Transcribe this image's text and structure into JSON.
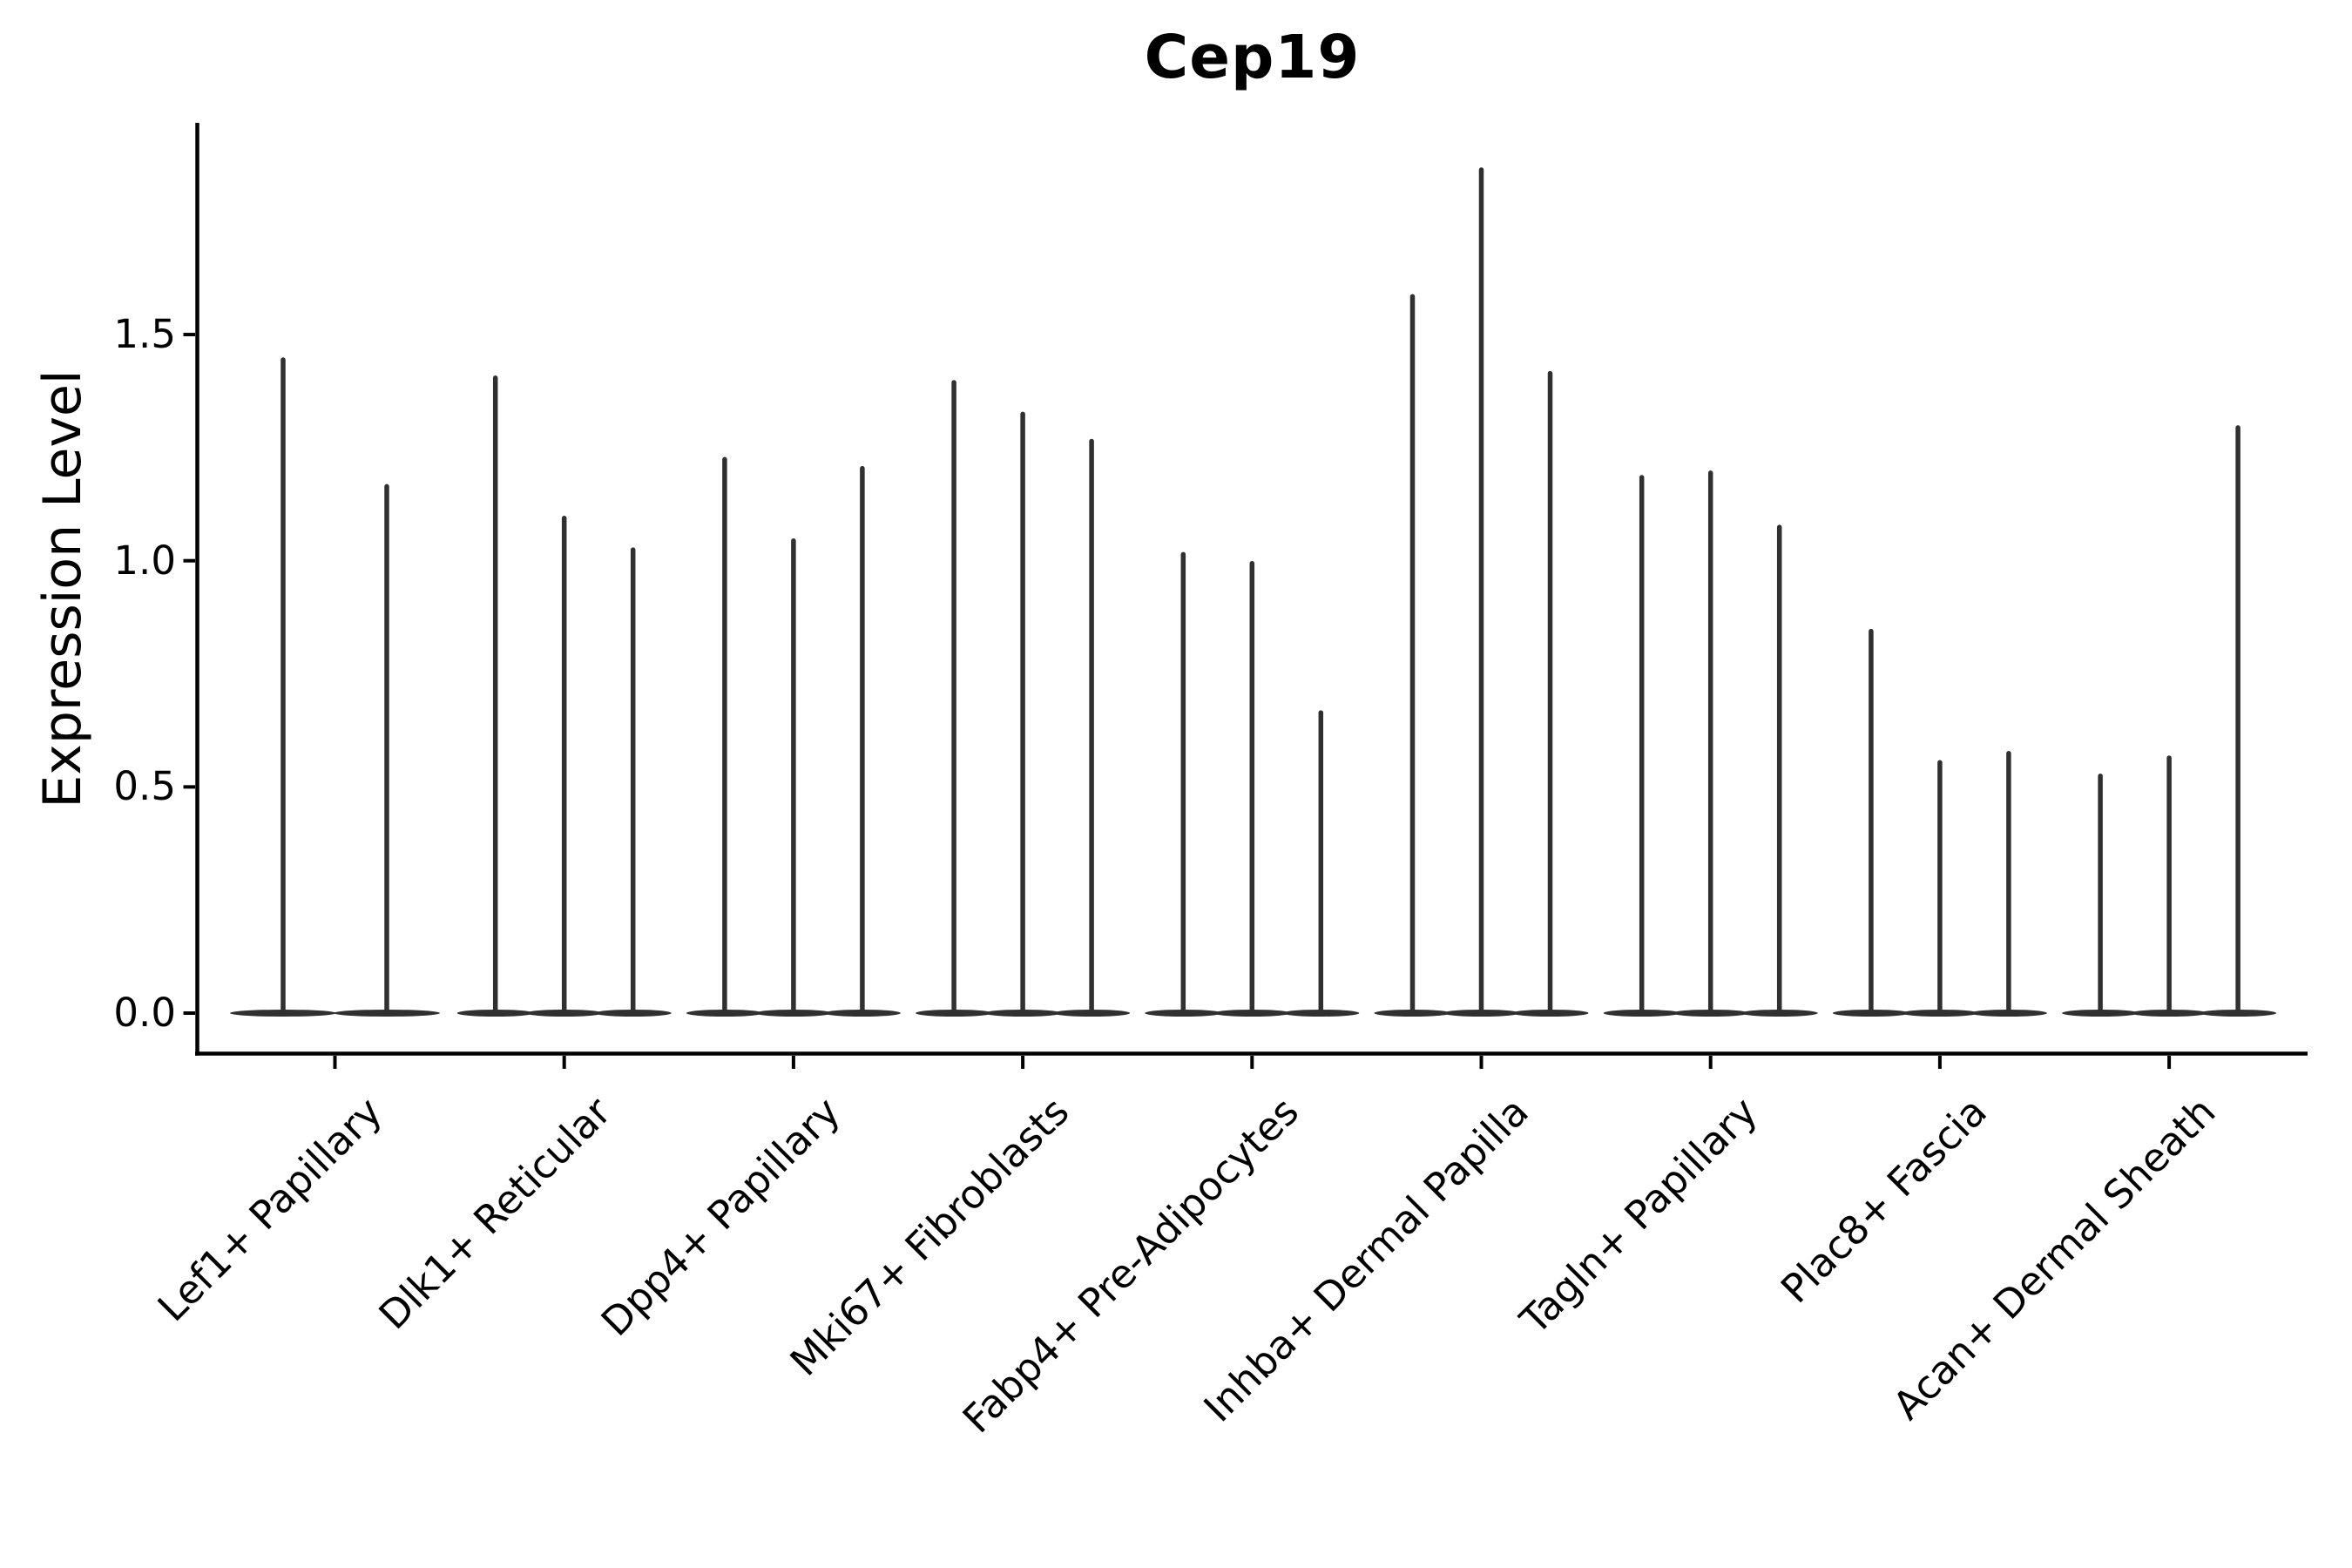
{
  "chart_data": {
    "type": "violin",
    "title": "Cep19",
    "xlabel": "",
    "ylabel": "Expression Level",
    "yticks": [
      "0.0",
      "0.5",
      "1.0",
      "1.5"
    ],
    "ytick_values": [
      0.0,
      0.5,
      1.0,
      1.5
    ],
    "ylim": [
      -0.09,
      1.97
    ],
    "grid": "off",
    "legend": "none",
    "x_tick_rotation_deg": 45,
    "violin_style": "thin spike with flat density lens at zero",
    "all_violins_min": 0.0,
    "groups": [
      {
        "category": "Lef1+ Papillary",
        "violin_maxima": [
          1.45,
          1.17
        ]
      },
      {
        "category": "Dlk1+ Reticular",
        "violin_maxima": [
          1.41,
          1.1,
          1.03
        ]
      },
      {
        "category": "Dpp4+ Papillary",
        "violin_maxima": [
          1.23,
          1.05,
          1.21
        ]
      },
      {
        "category": "Mki67+ Fibroblasts",
        "violin_maxima": [
          1.4,
          1.33,
          1.27
        ]
      },
      {
        "category": "Fabp4+ Pre-Adipocytes",
        "violin_maxima": [
          1.02,
          1.0,
          0.67
        ]
      },
      {
        "category": "Inhba+ Dermal Papilla",
        "violin_maxima": [
          1.59,
          1.87,
          1.42
        ]
      },
      {
        "category": "Tagln+ Papillary",
        "violin_maxima": [
          1.19,
          1.2,
          1.08
        ]
      },
      {
        "category": "Plac8+ Fascia",
        "violin_maxima": [
          0.85,
          0.56,
          0.58
        ]
      },
      {
        "category": "Acan+ Dermal Sheath",
        "violin_maxima": [
          0.53,
          0.57,
          1.3
        ]
      }
    ],
    "colors": {
      "violin": "#303030",
      "axis": "#000000",
      "text": "#000000",
      "background": "#ffffff"
    }
  }
}
